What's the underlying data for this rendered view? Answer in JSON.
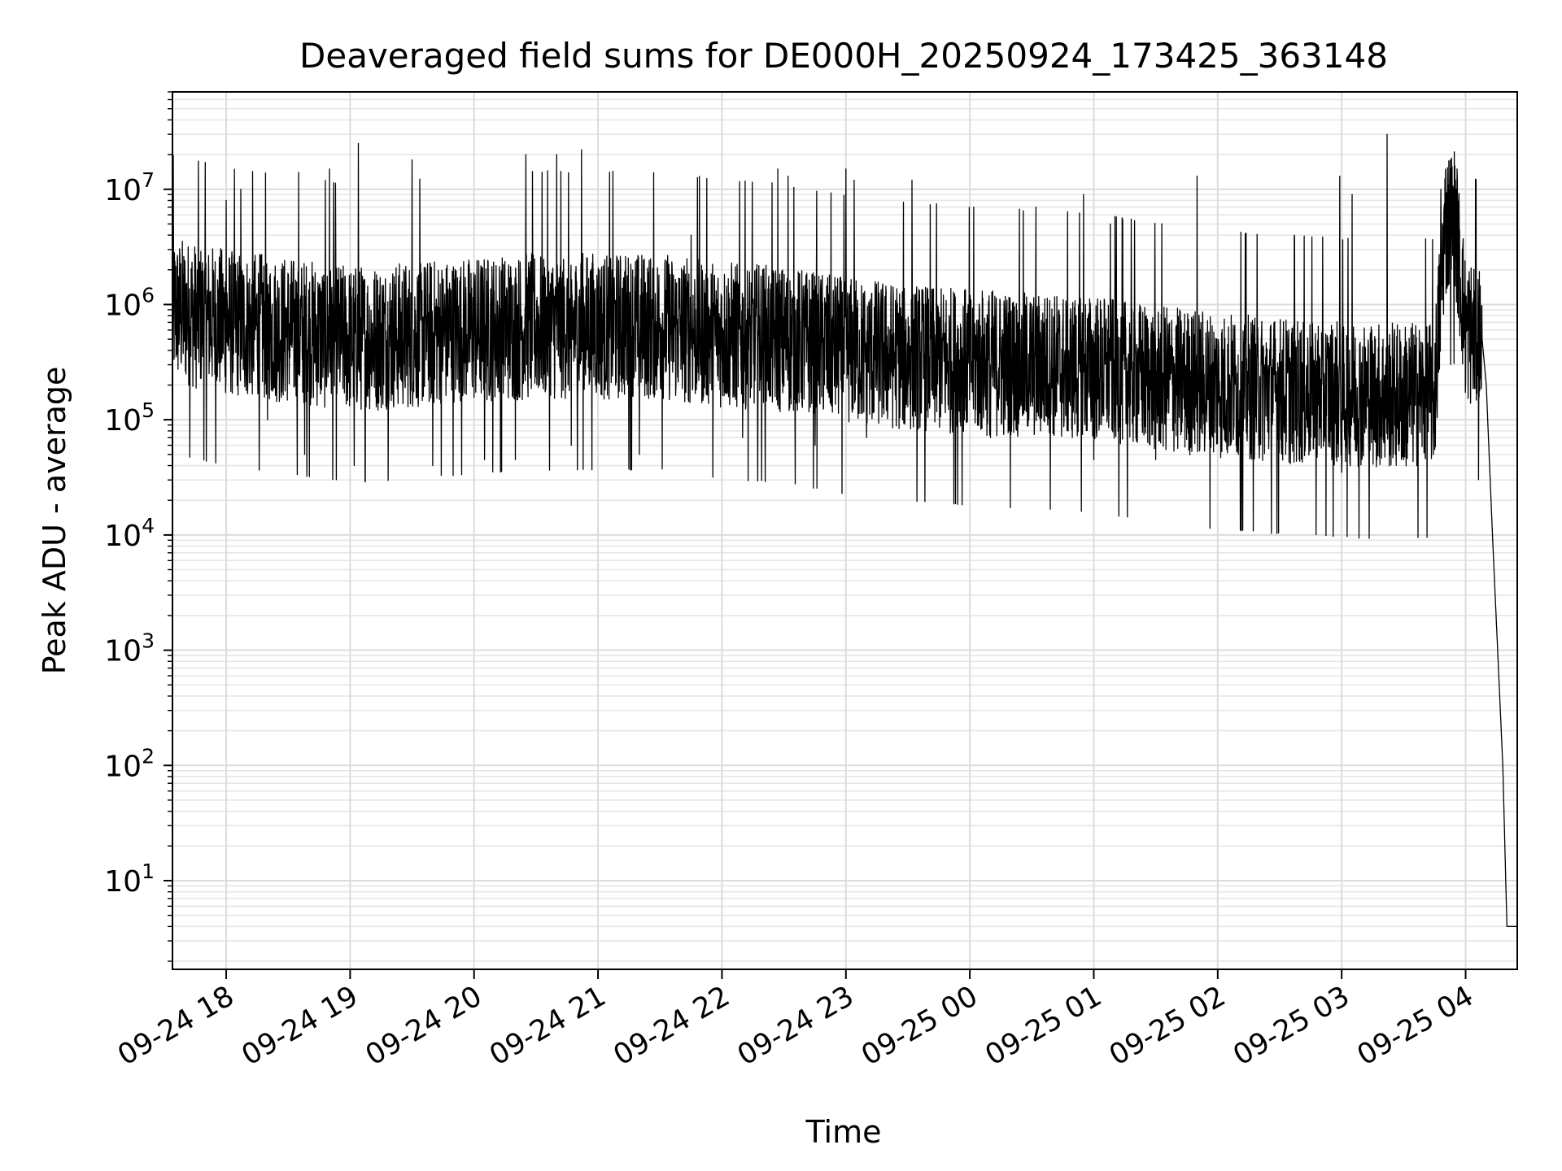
{
  "chart_data": {
    "type": "line",
    "title": "Deaveraged field sums for DE000H_20250924_173425_363148",
    "xlabel": "Time",
    "ylabel": "Peak ADU - average",
    "yscale": "log",
    "xlim": [
      "2025-09-24 17:34",
      "2025-09-25 04:25"
    ],
    "ylim": [
      1.7,
      70000000
    ],
    "grid": true,
    "minor_grid": true,
    "x_ticks": [
      {
        "t": "2025-09-24 18:00",
        "label": "09-24 18"
      },
      {
        "t": "2025-09-24 19:00",
        "label": "09-24 19"
      },
      {
        "t": "2025-09-24 20:00",
        "label": "09-24 20"
      },
      {
        "t": "2025-09-24 21:00",
        "label": "09-24 21"
      },
      {
        "t": "2025-09-24 22:00",
        "label": "09-24 22"
      },
      {
        "t": "2025-09-24 23:00",
        "label": "09-24 23"
      },
      {
        "t": "2025-09-25 00:00",
        "label": "09-25 00"
      },
      {
        "t": "2025-09-25 01:00",
        "label": "09-25 01"
      },
      {
        "t": "2025-09-25 02:00",
        "label": "09-25 02"
      },
      {
        "t": "2025-09-25 03:00",
        "label": "09-25 03"
      },
      {
        "t": "2025-09-25 04:00",
        "label": "09-25 04"
      }
    ],
    "y_ticks": [
      {
        "value": 10,
        "base": "10",
        "exp": "1"
      },
      {
        "value": 100,
        "base": "10",
        "exp": "2"
      },
      {
        "value": 1000,
        "base": "10",
        "exp": "3"
      },
      {
        "value": 10000,
        "base": "10",
        "exp": "4"
      },
      {
        "value": 100000,
        "base": "10",
        "exp": "5"
      },
      {
        "value": 1000000,
        "base": "10",
        "exp": "6"
      },
      {
        "value": 10000000,
        "base": "10",
        "exp": "7"
      }
    ],
    "series": [
      {
        "color": "#000000",
        "baseline": [
          [
            "2025-09-24 17:34",
            900000
          ],
          [
            "2025-09-24 18:00",
            700000
          ],
          [
            "2025-09-24 18:30",
            600000
          ],
          [
            "2025-09-24 19:00",
            500000
          ],
          [
            "2025-09-24 19:30",
            550000
          ],
          [
            "2025-09-24 20:00",
            600000
          ],
          [
            "2025-09-24 20:30",
            650000
          ],
          [
            "2025-09-24 21:00",
            650000
          ],
          [
            "2025-09-24 21:30",
            650000
          ],
          [
            "2025-09-24 22:00",
            550000
          ],
          [
            "2025-09-24 22:30",
            500000
          ],
          [
            "2025-09-24 23:00",
            400000
          ],
          [
            "2025-09-24 23:30",
            350000
          ],
          [
            "2025-09-25 00:00",
            320000
          ],
          [
            "2025-09-25 00:30",
            300000
          ],
          [
            "2025-09-25 01:00",
            280000
          ],
          [
            "2025-09-25 01:30",
            230000
          ],
          [
            "2025-09-25 02:00",
            200000
          ],
          [
            "2025-09-25 02:30",
            180000
          ],
          [
            "2025-09-25 03:00",
            170000
          ],
          [
            "2025-09-25 03:30",
            160000
          ],
          [
            "2025-09-25 03:45",
            170000
          ],
          [
            "2025-09-25 03:50",
            5000000
          ],
          [
            "2025-09-25 03:55",
            5500000
          ],
          [
            "2025-09-25 04:00",
            600000
          ],
          [
            "2025-09-25 04:05",
            550000
          ],
          [
            "2025-09-25 04:08",
            500000
          ],
          [
            "2025-09-25 04:10",
            200000
          ],
          [
            "2025-09-25 04:13",
            10000
          ],
          [
            "2025-09-25 04:18",
            100
          ],
          [
            "2025-09-25 04:20",
            4
          ],
          [
            "2025-09-25 04:25",
            4
          ]
        ],
        "peaks": [
          [
            "2025-09-24 18:00",
            8000000
          ],
          [
            "2025-09-24 18:07",
            10000000
          ],
          [
            "2025-09-24 18:20",
            20000000
          ],
          [
            "2025-09-24 18:35",
            14000000
          ],
          [
            "2025-09-24 18:50",
            15000000
          ],
          [
            "2025-09-24 19:04",
            25000000
          ],
          [
            "2025-09-24 19:30",
            18000000
          ],
          [
            "2025-09-24 19:40",
            14000000
          ],
          [
            "2025-09-24 20:05",
            15000000
          ],
          [
            "2025-09-24 20:25",
            20000000
          ],
          [
            "2025-09-24 20:40",
            20000000
          ],
          [
            "2025-09-24 20:52",
            22000000
          ],
          [
            "2025-09-24 21:20",
            13000000
          ],
          [
            "2025-09-24 21:45",
            4000000
          ],
          [
            "2025-09-24 22:27",
            15000000
          ],
          [
            "2025-09-24 22:32",
            13000000
          ],
          [
            "2025-09-24 23:00",
            15000000
          ],
          [
            "2025-09-24 23:04",
            12000000
          ],
          [
            "2025-09-24 23:32",
            12000000
          ],
          [
            "2025-09-25 00:32",
            7000000
          ],
          [
            "2025-09-25 00:55",
            9000000
          ],
          [
            "2025-09-25 01:08",
            5000000
          ],
          [
            "2025-09-25 01:50",
            13000000
          ],
          [
            "2025-09-25 02:37",
            4000000
          ],
          [
            "2025-09-25 02:59",
            13000000
          ],
          [
            "2025-09-25 03:05",
            9000000
          ],
          [
            "2025-09-25 03:22",
            30000000
          ],
          [
            "2025-09-25 03:48",
            10000000
          ],
          [
            "2025-09-25 03:54",
            10000000
          ]
        ],
        "troughs": [
          [
            "2025-09-24 18:20",
            100000
          ],
          [
            "2025-09-24 18:38",
            50000
          ],
          [
            "2025-09-24 19:02",
            40000
          ],
          [
            "2025-09-24 19:40",
            40000
          ],
          [
            "2025-09-24 20:05",
            45000
          ],
          [
            "2025-09-24 20:20",
            45000
          ],
          [
            "2025-09-24 20:47",
            60000
          ],
          [
            "2025-09-24 21:20",
            50000
          ],
          [
            "2025-09-24 22:10",
            70000
          ],
          [
            "2025-09-24 22:45",
            60000
          ],
          [
            "2025-09-24 23:10",
            70000
          ],
          [
            "2025-09-25 00:10",
            70000
          ],
          [
            "2025-09-25 01:00",
            45000
          ],
          [
            "2025-09-25 01:30",
            45000
          ],
          [
            "2025-09-25 02:10",
            50000
          ],
          [
            "2025-09-25 03:00",
            35000
          ],
          [
            "2025-09-25 03:30",
            45000
          ]
        ]
      }
    ]
  }
}
